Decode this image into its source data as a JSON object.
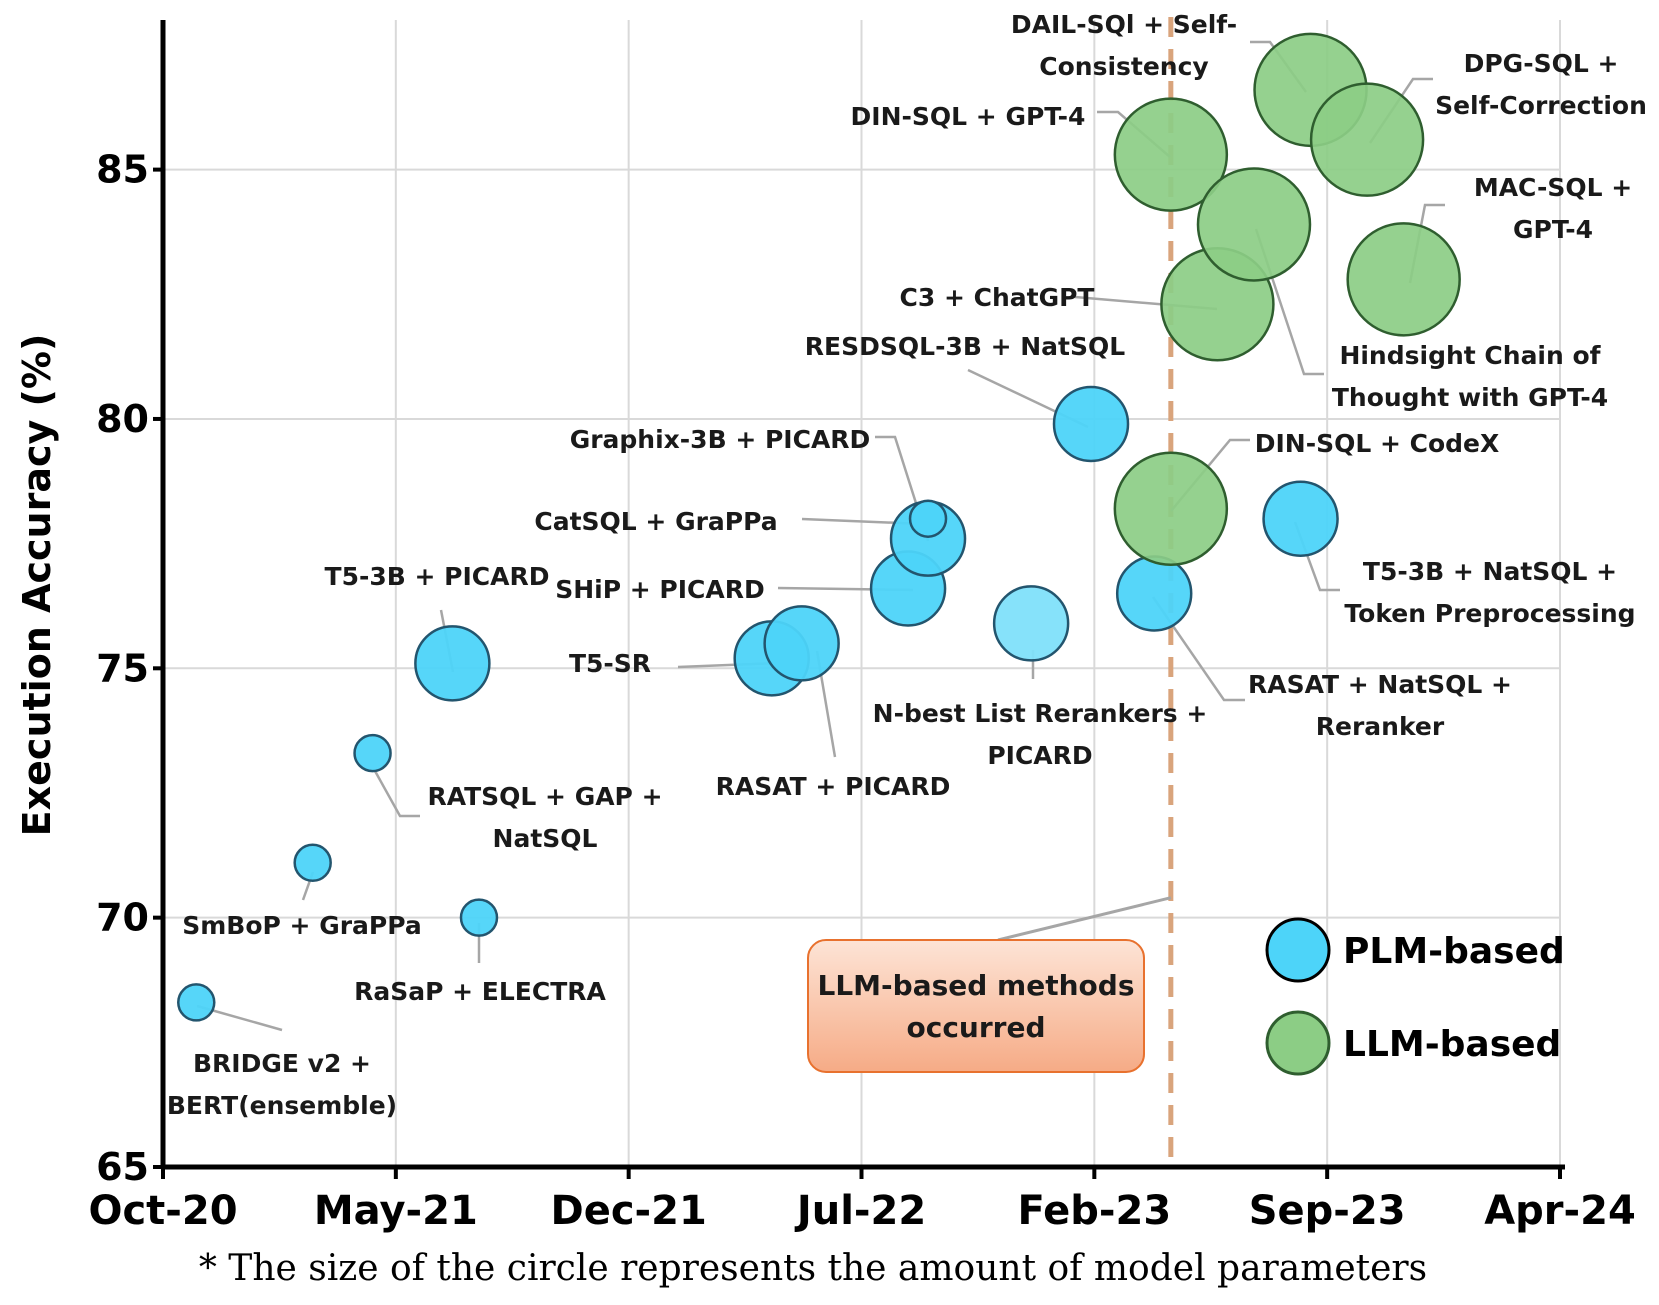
{
  "chart_data": {
    "type": "scatter",
    "title": "",
    "ylabel": "Execution Accuracy (%)",
    "xlabel": "",
    "footnote": "* The size of the circle represents the amount of model parameters",
    "x_ticks": [
      "Oct-20",
      "May-21",
      "Dec-21",
      "Jul-22",
      "Feb-23",
      "Sep-23",
      "Apr-24"
    ],
    "x_tick_months": [
      0,
      7,
      14,
      21,
      28,
      35,
      42
    ],
    "xlim": [
      0,
      42
    ],
    "ylim": [
      65,
      88
    ],
    "y_ticks": [
      65,
      70,
      75,
      80,
      85
    ],
    "grid": true,
    "legend_position": "bottom-right",
    "legend": [
      {
        "label": "PLM-based",
        "color": "#4dd4f9"
      },
      {
        "label": "LLM-based",
        "color": "#8ccd85"
      }
    ],
    "colors": {
      "plm_fill": "#4dd4f9",
      "plm_stroke": "#23556e",
      "llm_fill": "#8ccd85",
      "llm_stroke": "#2f5e2f",
      "threshold_line": "#d9a47c",
      "annotation_fill": "#f6ab86",
      "annotation_stroke": "#e8712e",
      "leader_line": "#a6a6a6"
    },
    "threshold": {
      "month": 30.3,
      "label": "LLM-based methods occurred"
    },
    "series": [
      {
        "name": "PLM-based",
        "points": [
          {
            "label": "BRIDGE v2 + BERT(ensemble)",
            "month": 1.0,
            "accuracy": 68.3,
            "size": 1
          },
          {
            "label": "SmBoP + GraPPa",
            "month": 4.5,
            "accuracy": 71.1,
            "size": 1
          },
          {
            "label": "RATSQL + GAP + NatSQL",
            "month": 6.3,
            "accuracy": 73.3,
            "size": 1
          },
          {
            "label": "T5-3B + PICARD",
            "month": 8.7,
            "accuracy": 75.1,
            "size": 3
          },
          {
            "label": "RaSaP + ELECTRA",
            "month": 9.5,
            "accuracy": 70.0,
            "size": 1
          },
          {
            "label": "T5-SR",
            "month": 18.3,
            "accuracy": 75.2,
            "size": 3
          },
          {
            "label": "RASAT + PICARD",
            "month": 19.2,
            "accuracy": 75.5,
            "size": 3
          },
          {
            "label": "SHiP + PICARD",
            "month": 22.4,
            "accuracy": 76.6,
            "size": 3
          },
          {
            "label": "Graphix-3B + PICARD",
            "month": 23.0,
            "accuracy": 77.6,
            "size": 3
          },
          {
            "label": "CatSQL + GraPPa",
            "month": 23.0,
            "accuracy": 78.0,
            "size": 1
          },
          {
            "label": "N-best List Rerankers + PICARD",
            "month": 26.1,
            "accuracy": 75.9,
            "size": 3,
            "light": true
          },
          {
            "label": "RESDSQL-3B + NatSQL",
            "month": 27.9,
            "accuracy": 79.9,
            "size": 3
          },
          {
            "label": "RASAT + NatSQL + Reranker",
            "month": 29.8,
            "accuracy": 76.5,
            "size": 3
          },
          {
            "label": "T5-3B + NatSQL + Token Preprocessing",
            "month": 34.2,
            "accuracy": 78.0,
            "size": 3
          }
        ]
      },
      {
        "name": "LLM-based",
        "points": [
          {
            "label": "DIN-SQL + CodeX",
            "month": 30.3,
            "accuracy": 78.2,
            "size": 10
          },
          {
            "label": "DIN-SQL + GPT-4",
            "month": 30.3,
            "accuracy": 85.3,
            "size": 10
          },
          {
            "label": "C3 + ChatGPT",
            "month": 31.7,
            "accuracy": 82.3,
            "size": 10
          },
          {
            "label": "Hindsight Chain of Thought with GPT-4",
            "month": 32.8,
            "accuracy": 83.9,
            "size": 10
          },
          {
            "label": "DAIL-SQL + Self-Consistency",
            "month": 34.5,
            "accuracy": 86.6,
            "size": 10
          },
          {
            "label": "DPG-SQL + Self-Correction",
            "month": 36.2,
            "accuracy": 85.6,
            "size": 10
          },
          {
            "label": "MAC-SQL + GPT-4",
            "month": 37.3,
            "accuracy": 82.8,
            "size": 10
          }
        ]
      }
    ],
    "labels": [
      {
        "series": 0,
        "idx": 0,
        "lines": [
          "BRIDGE v2 +",
          "BERT(ensemble)"
        ]
      },
      {
        "series": 0,
        "idx": 1,
        "lines": [
          "SmBoP + GraPPa"
        ]
      },
      {
        "series": 0,
        "idx": 2,
        "lines": [
          "RATSQL + GAP +",
          "NatSQL"
        ]
      },
      {
        "series": 0,
        "idx": 3,
        "lines": [
          "T5-3B + PICARD"
        ]
      },
      {
        "series": 0,
        "idx": 4,
        "lines": [
          "RaSaP + ELECTRA"
        ]
      },
      {
        "series": 0,
        "idx": 5,
        "lines": [
          "T5-SR"
        ]
      },
      {
        "series": 0,
        "idx": 6,
        "lines": [
          "RASAT + PICARD"
        ]
      },
      {
        "series": 0,
        "idx": 7,
        "lines": [
          "SHiP + PICARD"
        ]
      },
      {
        "series": 0,
        "idx": 8,
        "lines": [
          "Graphix-3B + PICARD"
        ]
      },
      {
        "series": 0,
        "idx": 9,
        "lines": [
          "CatSQL + GraPPa"
        ]
      },
      {
        "series": 0,
        "idx": 10,
        "lines": [
          "N-best List Rerankers +",
          "PICARD"
        ]
      },
      {
        "series": 0,
        "idx": 11,
        "lines": [
          "RESDSQL-3B + NatSQL"
        ]
      },
      {
        "series": 0,
        "idx": 12,
        "lines": [
          "RASAT + NatSQL +",
          "Reranker"
        ]
      },
      {
        "series": 0,
        "idx": 13,
        "lines": [
          "T5-3B + NatSQL +",
          "Token Preprocessing"
        ]
      },
      {
        "series": 1,
        "idx": 0,
        "lines": [
          "DIN-SQL + CodeX"
        ]
      },
      {
        "series": 1,
        "idx": 1,
        "lines": [
          "DIN-SQL + GPT-4"
        ]
      },
      {
        "series": 1,
        "idx": 2,
        "lines": [
          "C3 + ChatGPT"
        ]
      },
      {
        "series": 1,
        "idx": 3,
        "lines": [
          "Hindsight Chain of",
          "Thought with GPT-4"
        ]
      },
      {
        "series": 1,
        "idx": 4,
        "lines": [
          "DAIL-SQl + Self-",
          "Consistency"
        ]
      },
      {
        "series": 1,
        "idx": 5,
        "lines": [
          "DPG-SQL +",
          "Self-Correction"
        ]
      },
      {
        "series": 1,
        "idx": 6,
        "lines": [
          "MAC-SQL +",
          "GPT-4"
        ]
      }
    ]
  }
}
